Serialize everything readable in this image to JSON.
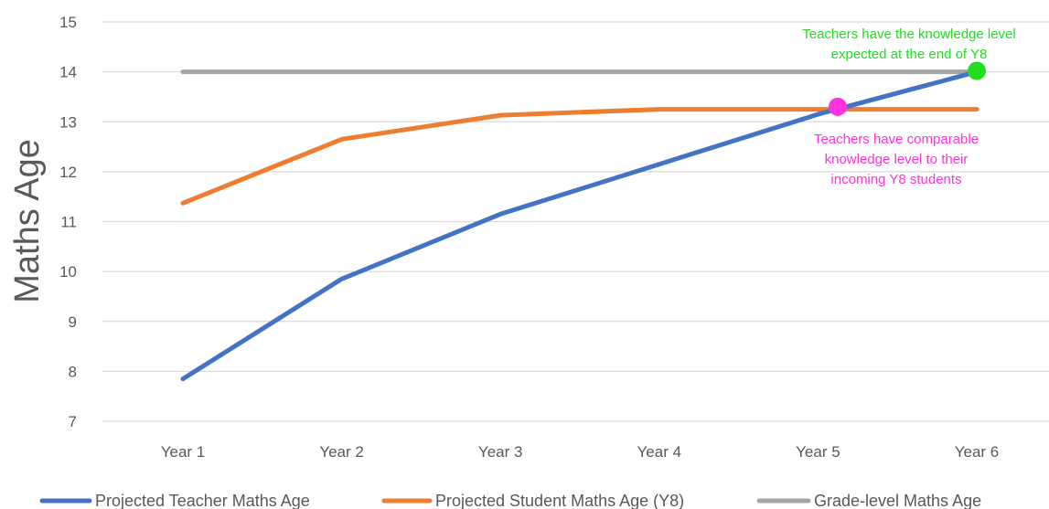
{
  "chart_data": {
    "type": "line",
    "categories": [
      "Year 1",
      "Year 2",
      "Year 3",
      "Year 4",
      "Year 5",
      "Year 6"
    ],
    "ylabel": "Maths Age",
    "xlabel": "",
    "ylim": [
      7,
      15
    ],
    "yticks": [
      "7",
      "8",
      "9",
      "10",
      "11",
      "12",
      "13",
      "14",
      "15"
    ],
    "grid": true,
    "legend_position": "bottom",
    "series": [
      {
        "name": "Projected Teacher Maths Age",
        "color": "#4472C4",
        "values": [
          7.85,
          9.85,
          11.15,
          12.15,
          13.15,
          14.0
        ]
      },
      {
        "name": "Projected Student Maths Age (Y8)",
        "color": "#ED7D31",
        "values": [
          11.37,
          12.65,
          13.13,
          13.25,
          13.25,
          13.25
        ]
      },
      {
        "name": "Grade-level Maths Age",
        "color": "#A5A5A5",
        "values": [
          14,
          14,
          14,
          14,
          14,
          14
        ]
      }
    ],
    "annotations": [
      {
        "lines": [
          "Teachers have the knowledge level",
          "expected at the end of Y8"
        ],
        "color": "#22DD22",
        "marker_x": 5,
        "marker_y": 14.02
      },
      {
        "lines": [
          "Teachers have comparable",
          "knowledge level to their",
          "incoming Y8 students"
        ],
        "color": "#FF33DD",
        "marker_x": 4,
        "marker_y": 13.3
      }
    ]
  }
}
